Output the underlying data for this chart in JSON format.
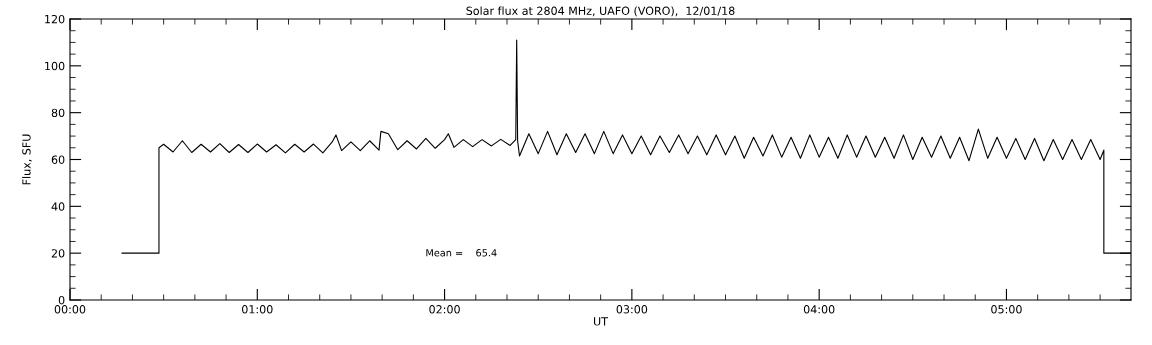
{
  "chart_data": {
    "type": "line",
    "title": "Solar flux at 2804 MHz, UAFO (VORO),  12/01/18",
    "xlabel": "UT",
    "ylabel": "Flux, SFU",
    "series": [
      {
        "color": "#000000",
        "x": [
          0.278,
          0.475,
          0.475,
          0.5,
          0.55,
          0.6,
          0.65,
          0.7,
          0.75,
          0.8,
          0.85,
          0.9,
          0.95,
          1.0,
          1.05,
          1.1,
          1.15,
          1.2,
          1.25,
          1.3,
          1.35,
          1.4,
          1.42,
          1.45,
          1.5,
          1.55,
          1.6,
          1.65,
          1.66,
          1.7,
          1.75,
          1.8,
          1.85,
          1.9,
          1.95,
          2.0,
          2.02,
          2.05,
          2.1,
          2.15,
          2.2,
          2.25,
          2.3,
          2.35,
          2.38,
          2.385,
          2.39,
          2.4,
          2.45,
          2.5,
          2.55,
          2.6,
          2.65,
          2.7,
          2.75,
          2.8,
          2.85,
          2.9,
          2.95,
          3.0,
          3.05,
          3.1,
          3.15,
          3.2,
          3.25,
          3.3,
          3.35,
          3.4,
          3.45,
          3.5,
          3.55,
          3.6,
          3.65,
          3.7,
          3.75,
          3.8,
          3.85,
          3.9,
          3.95,
          4.0,
          4.05,
          4.1,
          4.15,
          4.2,
          4.25,
          4.3,
          4.35,
          4.4,
          4.45,
          4.5,
          4.55,
          4.6,
          4.65,
          4.7,
          4.75,
          4.8,
          4.85,
          4.9,
          4.95,
          5.0,
          5.05,
          5.1,
          5.15,
          5.2,
          5.25,
          5.3,
          5.35,
          5.4,
          5.45,
          5.5,
          5.52,
          5.52,
          5.665
        ],
        "values": [
          20,
          20,
          65,
          66.5,
          63.2,
          68,
          63,
          66.5,
          63.2,
          66.8,
          63,
          66.4,
          63,
          66.6,
          63.2,
          66.3,
          62.8,
          66.5,
          63.2,
          66.6,
          62.8,
          67.5,
          70.5,
          63.8,
          67.5,
          63.8,
          68,
          64,
          72,
          71,
          64.2,
          68,
          64.5,
          69,
          64.8,
          68.5,
          71,
          65.2,
          68.5,
          65.5,
          68.5,
          65.8,
          68.6,
          66,
          68.5,
          111,
          68,
          61.5,
          71,
          62.5,
          72,
          62,
          71,
          63,
          71,
          62.5,
          72,
          62.5,
          70.5,
          62.5,
          70,
          62,
          70,
          63,
          70.5,
          62.5,
          70,
          62,
          70.5,
          62,
          70,
          60.5,
          69.5,
          61.5,
          70.5,
          61,
          69.5,
          60.5,
          70.5,
          61,
          69.5,
          60.5,
          70.5,
          61,
          70,
          61,
          69.5,
          60.5,
          70.5,
          60,
          69.5,
          61,
          70,
          60.5,
          69.5,
          59.5,
          73,
          60.5,
          69.5,
          60.5,
          69,
          60,
          69,
          59.5,
          68.5,
          60,
          68.5,
          60,
          68.5,
          60,
          64,
          20,
          20
        ]
      }
    ],
    "xlim": [
      0,
      5.665
    ],
    "xticks": [
      {
        "value": 0,
        "label": "00:00"
      },
      {
        "value": 1,
        "label": "01:00"
      },
      {
        "value": 2,
        "label": "02:00"
      },
      {
        "value": 3,
        "label": "03:00"
      },
      {
        "value": 4,
        "label": "04:00"
      },
      {
        "value": 5,
        "label": "05:00"
      }
    ],
    "ylim": [
      0,
      120
    ],
    "yticks": [
      0,
      20,
      40,
      60,
      80,
      100,
      120
    ],
    "annotations": [
      "Mean =    65.4"
    ],
    "grid": false
  }
}
